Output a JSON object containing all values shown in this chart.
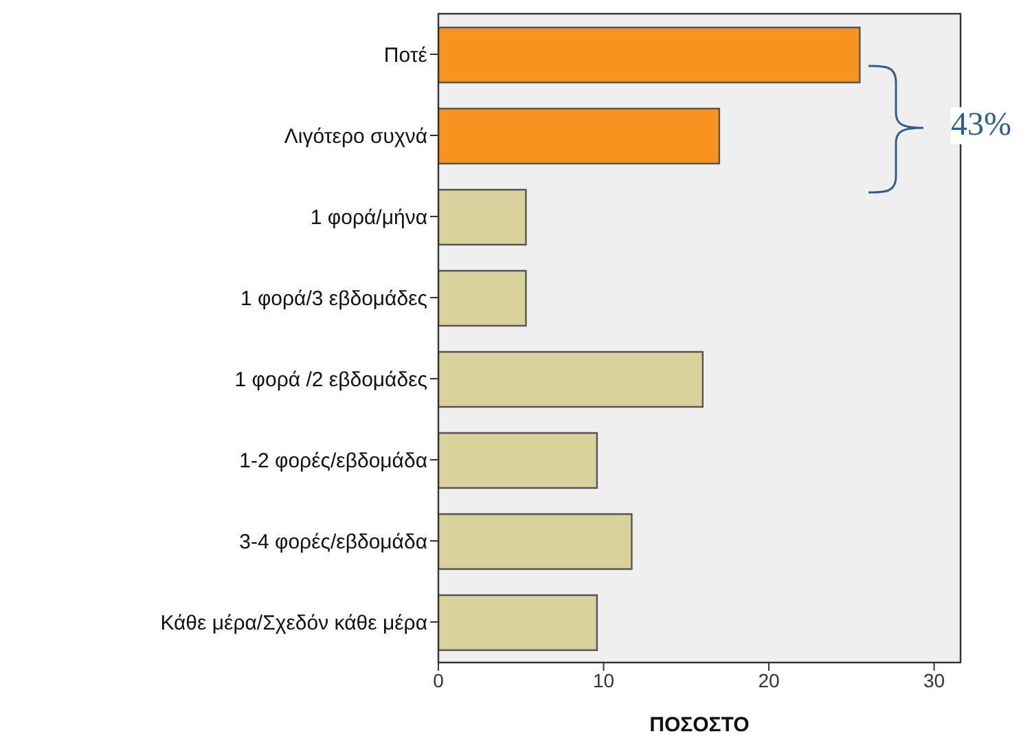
{
  "chart_data": {
    "type": "bar",
    "orientation": "horizontal",
    "xlabel": "ΠΟΣΟΣΤΟ",
    "categories": [
      "Ποτέ",
      "Λιγότερο συχνά",
      "1 φορά/μήνα",
      "1 φορά/3 εβδομάδες",
      "1 φορά /2 εβδομάδες",
      "1-2 φορές/εβδομάδα",
      "3-4 φορές/εβδομάδα",
      "Κάθε μέρα/Σχεδόν κάθε μέρα"
    ],
    "values": [
      25.5,
      17.0,
      5.3,
      5.3,
      16.0,
      9.6,
      11.7,
      9.6
    ],
    "colors": [
      "#f7931e",
      "#f7931e",
      "#d9d29a",
      "#d9d29a",
      "#d9d29a",
      "#d9d29a",
      "#d9d29a",
      "#d9d29a"
    ],
    "xlim": [
      0,
      31.6
    ],
    "xticks": [
      0,
      10,
      20,
      30
    ],
    "grid": false,
    "annotations": [
      "43%"
    ]
  }
}
